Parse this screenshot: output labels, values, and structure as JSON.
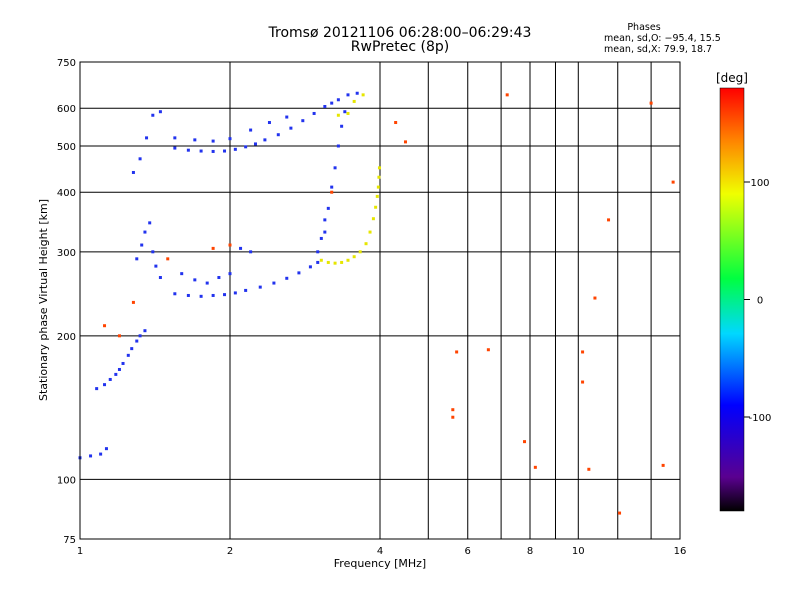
{
  "title": "Tromsø 20121106 06:28:00–06:29:43",
  "subtitle": "RwPretec (8p)",
  "phases": {
    "heading": "Phases",
    "line_o": "mean, sd,O: −95.4, 15.5",
    "line_x": "mean, sd,X:  79.9, 18.7"
  },
  "chart_data": {
    "type": "scatter",
    "xlabel": "Frequency [MHz]",
    "ylabel": "Stationary phase Virtual Height [km]",
    "x_scale": "log",
    "y_scale": "log",
    "xlim": [
      1,
      16
    ],
    "ylim": [
      75,
      750
    ],
    "x_ticks": [
      1,
      2,
      4,
      6,
      8,
      10,
      16
    ],
    "x_extra_grid": [
      5,
      7,
      9,
      12,
      14
    ],
    "y_ticks": [
      75,
      100,
      200,
      300,
      400,
      500,
      600,
      750
    ],
    "grid": true,
    "colorbar": {
      "label": "[deg]",
      "range": [
        -180,
        180
      ],
      "ticks": [
        100,
        0,
        -100
      ]
    },
    "series": [
      {
        "points": [
          [
            1.0,
            111
          ],
          [
            1.05,
            112
          ],
          [
            1.1,
            113
          ],
          [
            1.13,
            116
          ],
          [
            1.08,
            155
          ],
          [
            1.12,
            158
          ],
          [
            1.15,
            162
          ],
          [
            1.18,
            166
          ],
          [
            1.2,
            170
          ],
          [
            1.22,
            175
          ],
          [
            1.25,
            182
          ],
          [
            1.27,
            188
          ],
          [
            1.3,
            195
          ],
          [
            1.32,
            200
          ],
          [
            1.35,
            205
          ],
          [
            1.3,
            290
          ],
          [
            1.33,
            310
          ],
          [
            1.35,
            330
          ],
          [
            1.38,
            345
          ],
          [
            1.4,
            300
          ],
          [
            1.42,
            280
          ],
          [
            1.45,
            265
          ],
          [
            1.28,
            440
          ],
          [
            1.32,
            470
          ],
          [
            1.36,
            520
          ],
          [
            1.4,
            580
          ],
          [
            1.45,
            590
          ],
          [
            1.55,
            245
          ],
          [
            1.65,
            243
          ],
          [
            1.75,
            242
          ],
          [
            1.85,
            243
          ],
          [
            1.95,
            244
          ],
          [
            2.05,
            246
          ],
          [
            2.15,
            249
          ],
          [
            2.3,
            253
          ],
          [
            2.45,
            258
          ],
          [
            2.6,
            264
          ],
          [
            2.75,
            271
          ],
          [
            2.9,
            279
          ],
          [
            3.0,
            285
          ],
          [
            1.6,
            270
          ],
          [
            1.7,
            262
          ],
          [
            1.8,
            258
          ],
          [
            1.9,
            265
          ],
          [
            2.0,
            270
          ],
          [
            2.1,
            305
          ],
          [
            2.2,
            300
          ],
          [
            1.55,
            495
          ],
          [
            1.65,
            490
          ],
          [
            1.75,
            488
          ],
          [
            1.85,
            487
          ],
          [
            1.95,
            488
          ],
          [
            2.05,
            492
          ],
          [
            2.15,
            498
          ],
          [
            2.25,
            505
          ],
          [
            2.35,
            515
          ],
          [
            2.5,
            528
          ],
          [
            2.65,
            545
          ],
          [
            2.8,
            565
          ],
          [
            2.95,
            585
          ],
          [
            3.1,
            605
          ],
          [
            3.2,
            615
          ],
          [
            3.3,
            625
          ],
          [
            3.45,
            640
          ],
          [
            3.6,
            645
          ],
          [
            1.55,
            520
          ],
          [
            1.7,
            515
          ],
          [
            1.85,
            512
          ],
          [
            2.0,
            518
          ],
          [
            2.2,
            540
          ],
          [
            2.4,
            560
          ],
          [
            2.6,
            575
          ],
          [
            3.1,
            330
          ],
          [
            3.15,
            370
          ],
          [
            3.2,
            410
          ],
          [
            3.25,
            450
          ],
          [
            3.3,
            500
          ],
          [
            3.35,
            550
          ],
          [
            3.4,
            590
          ],
          [
            3.0,
            300
          ],
          [
            3.05,
            320
          ],
          [
            3.1,
            350
          ]
        ]
      },
      {
        "points": [
          [
            3.05,
            288
          ],
          [
            3.15,
            285
          ],
          [
            3.25,
            284
          ],
          [
            3.35,
            285
          ],
          [
            3.45,
            288
          ],
          [
            3.55,
            293
          ],
          [
            3.65,
            300
          ],
          [
            3.75,
            312
          ],
          [
            3.82,
            330
          ],
          [
            3.88,
            352
          ],
          [
            3.92,
            372
          ],
          [
            3.95,
            392
          ],
          [
            3.97,
            410
          ],
          [
            3.98,
            430
          ],
          [
            3.99,
            450
          ],
          [
            3.3,
            580
          ],
          [
            3.45,
            585
          ],
          [
            3.55,
            620
          ],
          [
            3.7,
            640
          ]
        ]
      },
      {
        "points": [
          [
            1.12,
            210
          ],
          [
            1.2,
            200
          ],
          [
            1.28,
            235
          ],
          [
            1.5,
            290
          ],
          [
            1.85,
            305
          ],
          [
            2.0,
            310
          ],
          [
            3.2,
            400
          ],
          [
            4.3,
            560
          ],
          [
            4.5,
            510
          ],
          [
            5.6,
            135
          ],
          [
            5.6,
            140
          ],
          [
            5.7,
            185
          ],
          [
            7.8,
            120
          ],
          [
            8.2,
            106
          ],
          [
            10.5,
            105
          ],
          [
            10.2,
            160
          ],
          [
            10.8,
            240
          ],
          [
            11.5,
            350
          ],
          [
            12.1,
            85
          ],
          [
            14.0,
            615
          ],
          [
            15.5,
            420
          ],
          [
            14.8,
            107
          ],
          [
            7.2,
            640
          ],
          [
            10.2,
            185
          ],
          [
            6.6,
            187
          ]
        ]
      }
    ]
  }
}
